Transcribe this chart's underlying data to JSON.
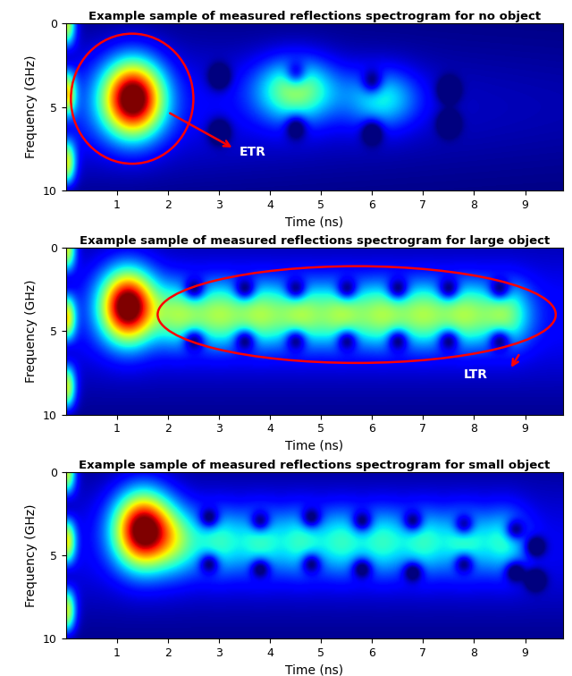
{
  "title1": "Example sample of measured reflections spectrogram for no object",
  "title2": "Example sample of measured reflections spectrogram for large object",
  "title3": "Example sample of measured reflections spectrogram for small object",
  "xlabel": "Time (ns)",
  "ylabel": "Frequency (GHz)",
  "xticks": [
    1,
    2,
    3,
    4,
    5,
    6,
    7,
    8,
    9
  ],
  "yticks": [
    0,
    5,
    10
  ],
  "etr_label": "ETR",
  "ltr_label": "LTR",
  "title_fontsize": 9.5,
  "label_fontsize": 10,
  "tick_fontsize": 9,
  "annot_fontsize": 10,
  "fig_width": 6.4,
  "fig_height": 7.56,
  "dpi": 100
}
